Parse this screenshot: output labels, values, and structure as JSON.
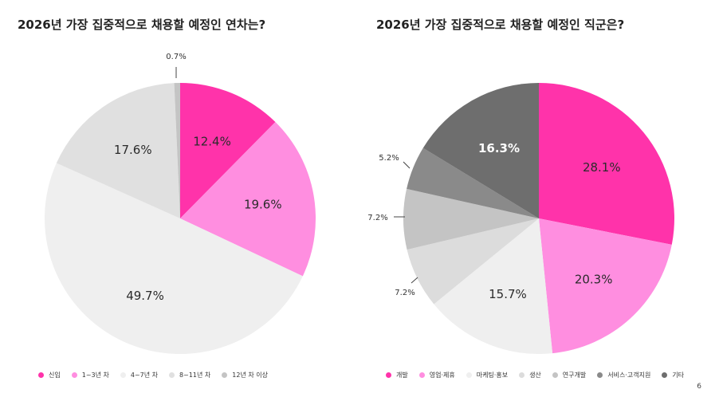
{
  "page_number": "6",
  "chart_data": [
    {
      "type": "pie",
      "title": "2026년 가장 집중적으로 채용할 예정인 연차는?",
      "categories": [
        "신입",
        "1~3년 차",
        "4~7년 차",
        "8~11년 차",
        "12년 차 이상"
      ],
      "values": [
        12.4,
        19.6,
        49.7,
        17.6,
        0.7
      ],
      "labels": [
        "12.4%",
        "19.6%",
        "49.7%",
        "17.6%",
        "0.7%"
      ],
      "colors": [
        "#ff33aa",
        "#ff8ee0",
        "#efefef",
        "#e0e0e0",
        "#c4c4c4"
      ],
      "start": "12 o'clock, clockwise"
    },
    {
      "type": "pie",
      "title": "2026년 가장 집중적으로 채용할 예정인 직군은?",
      "categories": [
        "개발",
        "영업·제휴",
        "마케팅·홍보",
        "생산",
        "연구개발",
        "서비스·고객지원",
        "기타"
      ],
      "values": [
        28.1,
        20.3,
        15.7,
        7.2,
        7.2,
        5.2,
        16.3
      ],
      "labels": [
        "28.1%",
        "20.3%",
        "15.7%",
        "7.2%",
        "7.2%",
        "5.2%",
        "16.3%"
      ],
      "colors": [
        "#ff33aa",
        "#ff8ee0",
        "#efefef",
        "#dcdcdc",
        "#c4c4c4",
        "#8a8a8a",
        "#6e6e6e"
      ],
      "start": "12 o'clock, clockwise"
    }
  ]
}
